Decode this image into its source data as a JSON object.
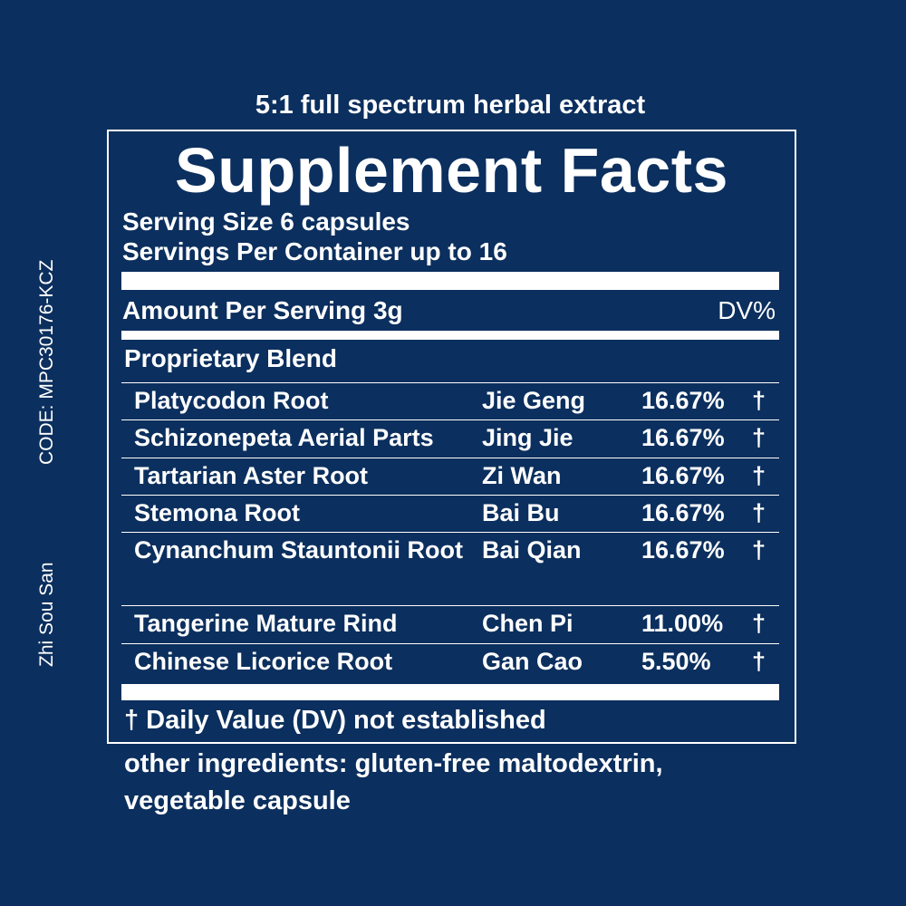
{
  "top_note": "5:1 full spectrum herbal extract",
  "title": "Supplement Facts",
  "serving_size": "Serving Size 6 capsules",
  "servings_per_container": "Servings Per Container up to 16",
  "amount_header": {
    "label": "Amount Per Serving 3g",
    "dv": "DV%"
  },
  "blend": {
    "title": "Proprietary Blend",
    "rows": [
      [
        "Platycodon Root",
        "Jie Geng",
        "16.67%",
        "†"
      ],
      [
        "Schizonepeta Aerial Parts",
        "Jing Jie",
        "16.67%",
        "†"
      ],
      [
        "Tartarian Aster Root",
        "Zi Wan",
        "16.67%",
        "†"
      ],
      [
        "Stemona Root",
        "Bai Bu",
        "16.67%",
        "†"
      ],
      [
        "Cynanchum Stauntonii Root",
        "Bai Qian",
        "16.67%",
        "†"
      ],
      [
        "Tangerine Mature Rind",
        "Chen Pi",
        "11.00%",
        "†"
      ],
      [
        "Chinese Licorice Root",
        "Gan Cao",
        "5.50%",
        "†"
      ]
    ]
  },
  "footnote": "† Daily Value (DV) not established",
  "other_ingredients": "other ingredients: gluten-free maltodextrin, vegetable capsule",
  "side": {
    "code": "CODE: MPC30176-KCZ",
    "name": "Zhi Sou San"
  }
}
